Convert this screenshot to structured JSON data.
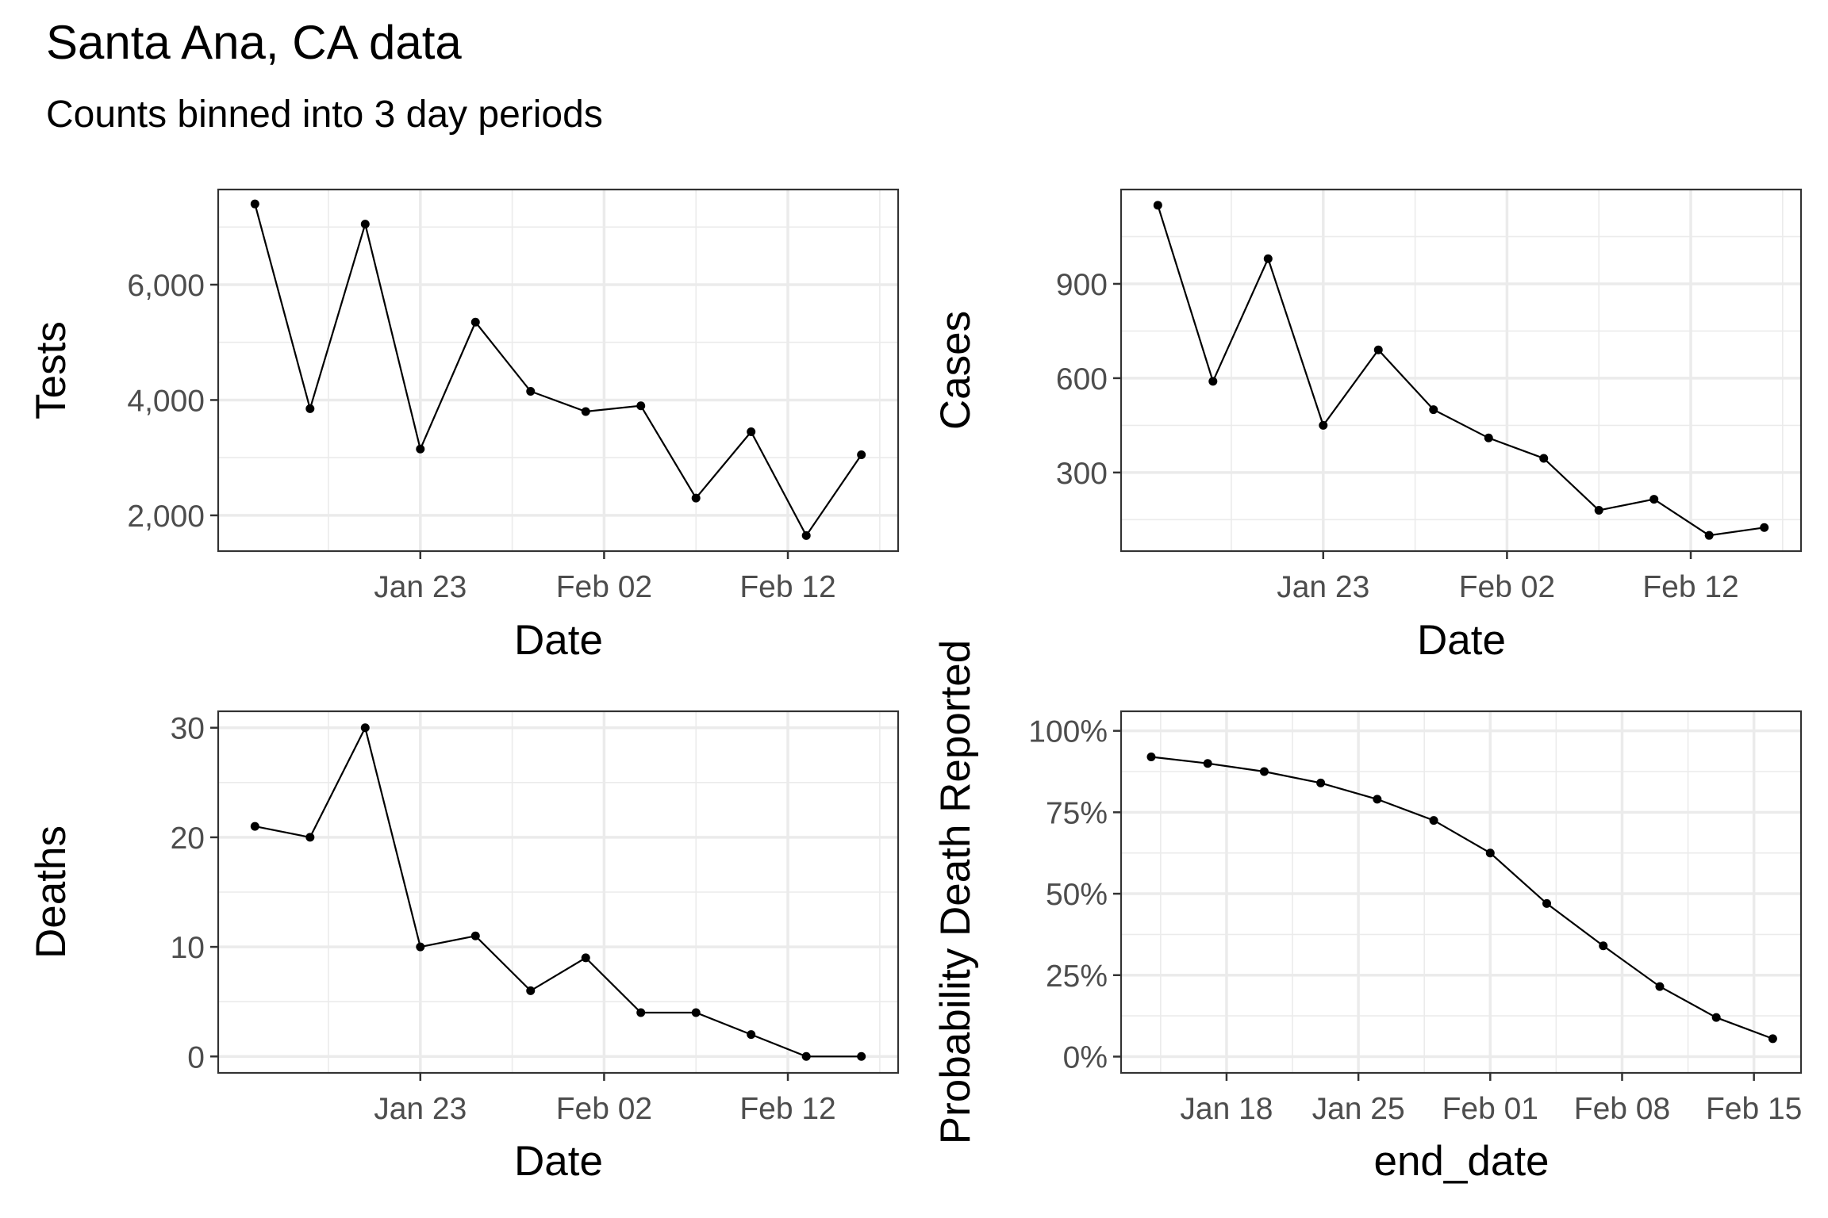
{
  "title": "Santa Ana, CA data",
  "subtitle": "Counts binned into 3 day periods",
  "chart_data": [
    {
      "type": "line",
      "xlabel": "Date",
      "ylabel": "Tests",
      "x": [
        "2021-01-14",
        "2021-01-17",
        "2021-01-20",
        "2021-01-23",
        "2021-01-26",
        "2021-01-29",
        "2021-02-01",
        "2021-02-04",
        "2021-02-07",
        "2021-02-10",
        "2021-02-13",
        "2021-02-16"
      ],
      "values": [
        7400,
        3850,
        7050,
        3150,
        5350,
        4150,
        3800,
        3900,
        2300,
        3450,
        1650,
        3050
      ],
      "xlim": [
        "2021-01-12",
        "2021-02-18"
      ],
      "ylim": [
        1380,
        7650
      ],
      "xticks": [
        {
          "v": "2021-01-23",
          "label": "Jan 23"
        },
        {
          "v": "2021-02-02",
          "label": "Feb 02"
        },
        {
          "v": "2021-02-12",
          "label": "Feb 12"
        }
      ],
      "yticks": [
        {
          "v": 2000,
          "label": "2,000"
        },
        {
          "v": 4000,
          "label": "4,000"
        },
        {
          "v": 6000,
          "label": "6,000"
        }
      ],
      "grid": true
    },
    {
      "type": "line",
      "xlabel": "Date",
      "ylabel": "Cases",
      "x": [
        "2021-01-14",
        "2021-01-17",
        "2021-01-20",
        "2021-01-23",
        "2021-01-26",
        "2021-01-29",
        "2021-02-01",
        "2021-02-04",
        "2021-02-07",
        "2021-02-10",
        "2021-02-13",
        "2021-02-16"
      ],
      "values": [
        1150,
        590,
        980,
        450,
        690,
        500,
        410,
        345,
        180,
        215,
        100,
        125
      ],
      "xlim": [
        "2021-01-12",
        "2021-02-18"
      ],
      "ylim": [
        50,
        1200
      ],
      "xticks": [
        {
          "v": "2021-01-23",
          "label": "Jan 23"
        },
        {
          "v": "2021-02-02",
          "label": "Feb 02"
        },
        {
          "v": "2021-02-12",
          "label": "Feb 12"
        }
      ],
      "yticks": [
        {
          "v": 300,
          "label": "300"
        },
        {
          "v": 600,
          "label": "600"
        },
        {
          "v": 900,
          "label": "900"
        }
      ],
      "grid": true
    },
    {
      "type": "line",
      "xlabel": "Date",
      "ylabel": "Deaths",
      "x": [
        "2021-01-14",
        "2021-01-17",
        "2021-01-20",
        "2021-01-23",
        "2021-01-26",
        "2021-01-29",
        "2021-02-01",
        "2021-02-04",
        "2021-02-07",
        "2021-02-10",
        "2021-02-13",
        "2021-02-16"
      ],
      "values": [
        21,
        20,
        30,
        10,
        11,
        6,
        9,
        4,
        4,
        2,
        0,
        0
      ],
      "xlim": [
        "2021-01-12",
        "2021-02-18"
      ],
      "ylim": [
        -1.5,
        31.5
      ],
      "xticks": [
        {
          "v": "2021-01-23",
          "label": "Jan 23"
        },
        {
          "v": "2021-02-02",
          "label": "Feb 02"
        },
        {
          "v": "2021-02-12",
          "label": "Feb 12"
        }
      ],
      "yticks": [
        {
          "v": 0,
          "label": "0"
        },
        {
          "v": 10,
          "label": "10"
        },
        {
          "v": 20,
          "label": "20"
        },
        {
          "v": 30,
          "label": "30"
        }
      ],
      "grid": true
    },
    {
      "type": "line",
      "xlabel": "end_date",
      "ylabel": "Probability Death Reported",
      "x": [
        "2021-01-14",
        "2021-01-17",
        "2021-01-20",
        "2021-01-23",
        "2021-01-26",
        "2021-01-29",
        "2021-02-01",
        "2021-02-04",
        "2021-02-07",
        "2021-02-10",
        "2021-02-13",
        "2021-02-16"
      ],
      "values": [
        0.92,
        0.9,
        0.875,
        0.84,
        0.79,
        0.725,
        0.625,
        0.47,
        0.34,
        0.215,
        0.12,
        0.055
      ],
      "xlim": [
        "2021-01-12.4",
        "2021-02-17.5"
      ],
      "ylim": [
        -0.05,
        1.06
      ],
      "xticks": [
        {
          "v": "2021-01-18",
          "label": "Jan 18"
        },
        {
          "v": "2021-01-25",
          "label": "Jan 25"
        },
        {
          "v": "2021-02-01",
          "label": "Feb 01"
        },
        {
          "v": "2021-02-08",
          "label": "Feb 08"
        },
        {
          "v": "2021-02-15",
          "label": "Feb 15"
        }
      ],
      "yticks": [
        {
          "v": 0,
          "label": "0%"
        },
        {
          "v": 0.25,
          "label": "25%"
        },
        {
          "v": 0.5,
          "label": "50%"
        },
        {
          "v": 0.75,
          "label": "75%"
        },
        {
          "v": 1,
          "label": "100%"
        }
      ],
      "grid": true
    }
  ]
}
